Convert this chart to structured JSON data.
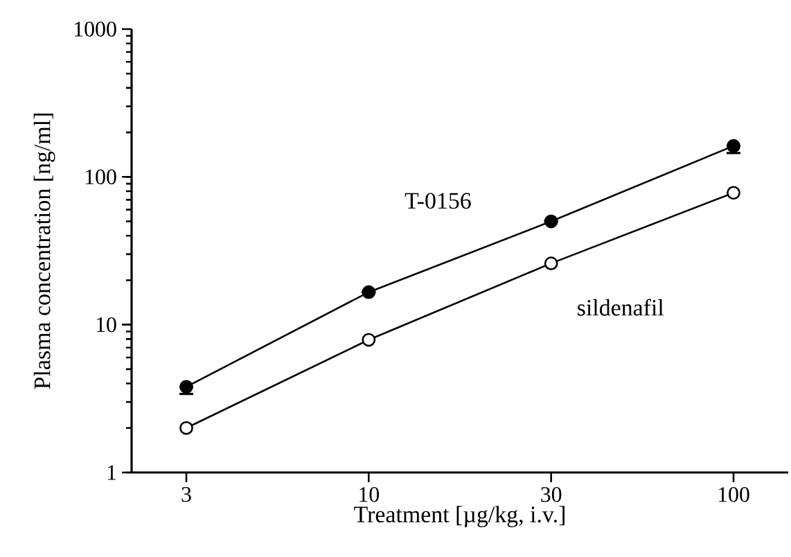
{
  "chart_data": {
    "type": "line",
    "xlabel": "Treatment [µg/kg, i.v.]",
    "ylabel": "Plasma concentration [ng/ml]",
    "categories": [
      "3",
      "10",
      "30",
      "100"
    ],
    "series": [
      {
        "name": "T-0156",
        "color": "#000000",
        "values": [
          3.8,
          16.6,
          50,
          162
        ],
        "errors": [
          [
            3.4,
            3.8
          ],
          null,
          null,
          [
            145,
            162
          ]
        ]
      },
      {
        "name": "sildenafil",
        "color": "#000000",
        "colors": [
          "#ffffff",
          "#ffffff",
          "#ffffff",
          "#ffffff"
        ],
        "values": [
          2.0,
          7.9,
          26,
          78
        ]
      }
    ],
    "log": "y",
    "ylim": [
      1,
      1000
    ],
    "yticks": [
      1,
      10,
      100,
      1000
    ],
    "marker": "circle",
    "line_style": "solid",
    "grid": false
  }
}
